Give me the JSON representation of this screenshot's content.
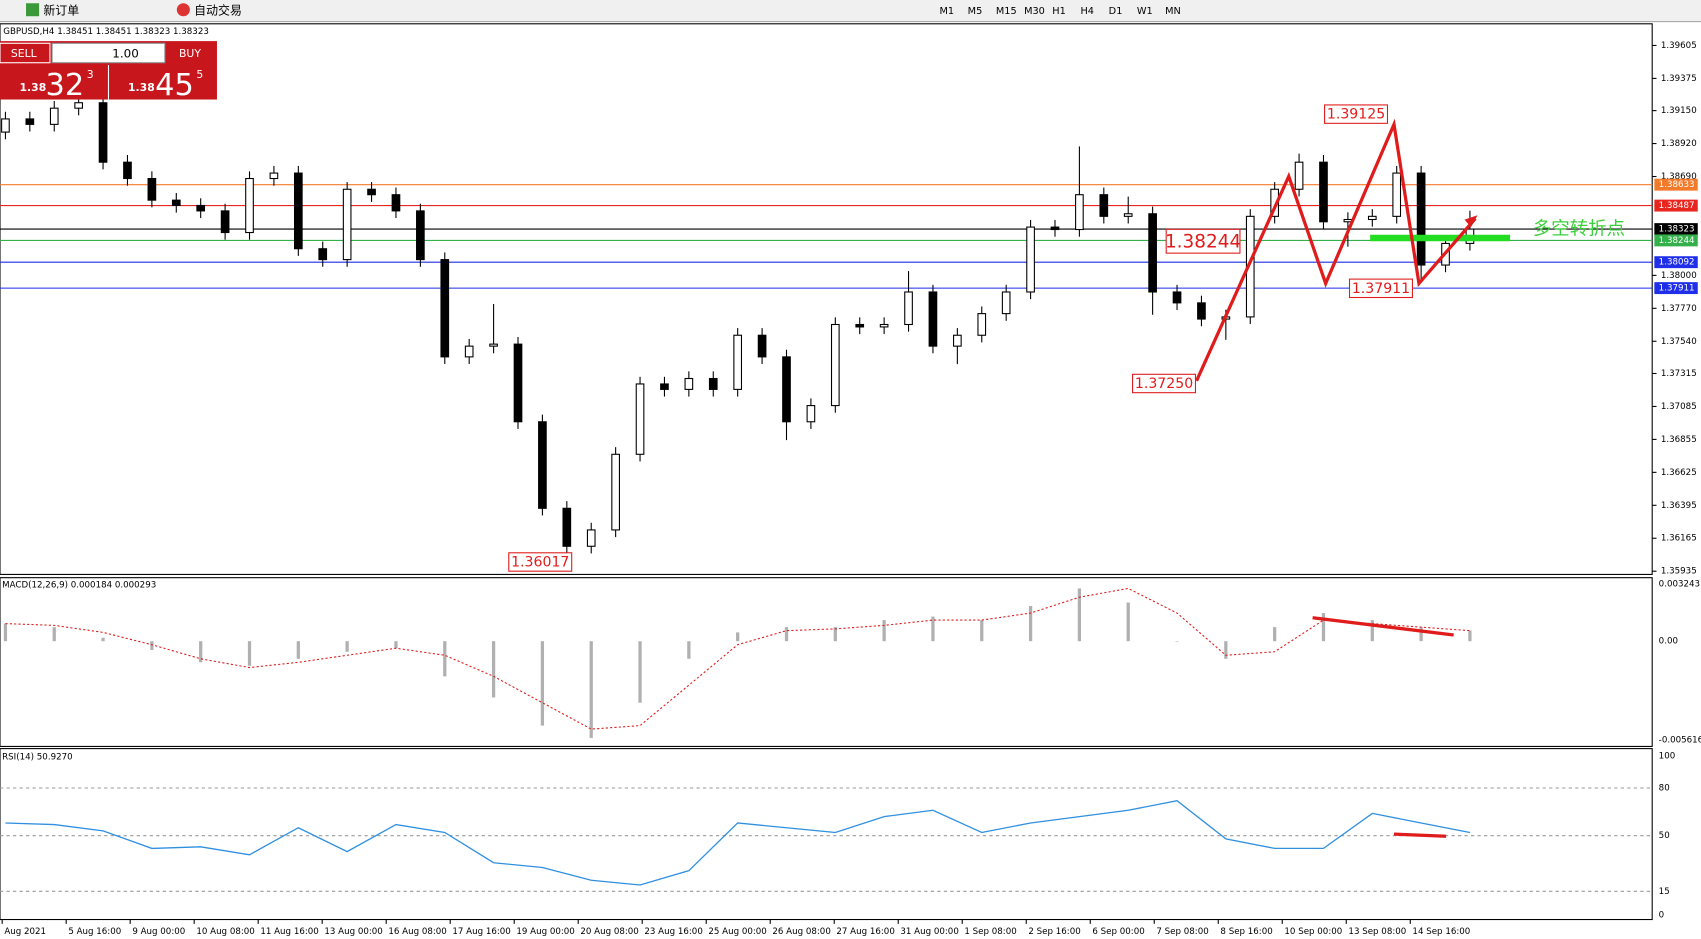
{
  "toolbar": {
    "new_order": "新订单",
    "auto_trade": "自动交易",
    "timeframes": [
      "M1",
      "M5",
      "M15",
      "M30",
      "H1",
      "H4",
      "D1",
      "W1",
      "MN"
    ]
  },
  "trade_panel": {
    "sell": "SELL",
    "buy": "BUY",
    "lot": "1.00",
    "bid_prefix": "1.38",
    "bid_big": "32",
    "bid_sup": "3",
    "ask_prefix": "1.38",
    "ask_big": "45",
    "ask_sup": "5"
  },
  "chart": {
    "symbol_info": "GBPUSD,H4  1.38451 1.38451 1.38323 1.38323",
    "price_ticks": [
      "1.39605",
      "1.39375",
      "1.39150",
      "1.38920",
      "1.38690",
      "1.38000",
      "1.37770",
      "1.37540",
      "1.37315",
      "1.37085",
      "1.36855",
      "1.36625",
      "1.36395",
      "1.36165",
      "1.35935"
    ],
    "price_lines": [
      {
        "value": "1.38633",
        "color": "#f47a2b"
      },
      {
        "value": "1.38487",
        "color": "#e8261f"
      },
      {
        "value": "1.38323",
        "color": "#000000"
      },
      {
        "value": "1.38244",
        "color": "#33b04a"
      },
      {
        "value": "1.38092",
        "color": "#1f2ee8"
      },
      {
        "value": "1.37911",
        "color": "#1f2ee8"
      }
    ],
    "time_labels": [
      "Aug 2021",
      "5 Aug 16:00",
      "9 Aug 00:00",
      "10 Aug 08:00",
      "11 Aug 16:00",
      "13 Aug 00:00",
      "16 Aug 08:00",
      "17 Aug 16:00",
      "19 Aug 00:00",
      "20 Aug 08:00",
      "23 Aug 16:00",
      "25 Aug 00:00",
      "26 Aug 08:00",
      "27 Aug 16:00",
      "31 Aug 00:00",
      "1 Sep 08:00",
      "2 Sep 16:00",
      "6 Sep 00:00",
      "7 Sep 08:00",
      "8 Sep 16:00",
      "10 Sep 00:00",
      "13 Sep 08:00",
      "14 Sep 16:00"
    ],
    "annotations": {
      "high": "1.39125",
      "pivot": "1.38244",
      "low_right": "1.37911",
      "low_mid": "1.37250",
      "low_left": "1.36017",
      "turn_point": "多空转折点"
    },
    "candles": [
      [
        1.39,
        1.39142,
        1.3895,
        1.39092
      ],
      [
        1.39092,
        1.39142,
        1.39004,
        1.39054
      ],
      [
        1.39054,
        1.39217,
        1.39004,
        1.39167
      ],
      [
        1.39167,
        1.39255,
        1.39117,
        1.39205
      ],
      [
        1.39205,
        1.39255,
        1.3874,
        1.3879
      ],
      [
        1.3879,
        1.3884,
        1.38626,
        1.38676
      ],
      [
        1.38676,
        1.38726,
        1.38475,
        1.38525
      ],
      [
        1.38525,
        1.38575,
        1.38438,
        1.38488
      ],
      [
        1.38488,
        1.38538,
        1.384,
        1.3845
      ],
      [
        1.3845,
        1.385,
        1.38249,
        1.38299
      ],
      [
        1.38299,
        1.38726,
        1.38249,
        1.38676
      ],
      [
        1.38676,
        1.38764,
        1.38626,
        1.38714
      ],
      [
        1.38714,
        1.38764,
        1.38136,
        1.38186
      ],
      [
        1.38186,
        1.38236,
        1.3806,
        1.3811
      ],
      [
        1.3811,
        1.38651,
        1.3806,
        1.38601
      ],
      [
        1.38601,
        1.38651,
        1.38513,
        1.38563
      ],
      [
        1.38563,
        1.38613,
        1.384,
        1.3845
      ],
      [
        1.3845,
        1.385,
        1.3806,
        1.3811
      ],
      [
        1.3811,
        1.3816,
        1.37381,
        1.37431
      ],
      [
        1.37431,
        1.37556,
        1.37381,
        1.37506
      ],
      [
        1.37506,
        1.378,
        1.37456,
        1.3752
      ],
      [
        1.3752,
        1.3757,
        1.36928,
        1.36978
      ],
      [
        1.36978,
        1.37028,
        1.36324,
        1.36374
      ],
      [
        1.36374,
        1.36424,
        1.36017,
        1.36109
      ],
      [
        1.36109,
        1.36273,
        1.36059,
        1.36223
      ],
      [
        1.36223,
        1.36801,
        1.36173,
        1.36751
      ],
      [
        1.36751,
        1.37292,
        1.36701,
        1.37242
      ],
      [
        1.37242,
        1.37292,
        1.37154,
        1.37204
      ],
      [
        1.37204,
        1.3733,
        1.37154,
        1.3728
      ],
      [
        1.3728,
        1.3733,
        1.37154,
        1.37204
      ],
      [
        1.37204,
        1.37632,
        1.37154,
        1.37582
      ],
      [
        1.37582,
        1.37632,
        1.37381,
        1.37431
      ],
      [
        1.37431,
        1.37481,
        1.3685,
        1.36978
      ],
      [
        1.36978,
        1.37141,
        1.36928,
        1.37091
      ],
      [
        1.37091,
        1.37707,
        1.37041,
        1.37657
      ],
      [
        1.37657,
        1.37707,
        1.3759,
        1.3764
      ],
      [
        1.3764,
        1.37707,
        1.3759,
        1.37657
      ],
      [
        1.37657,
        1.3803,
        1.37607,
        1.37884
      ],
      [
        1.37884,
        1.37934,
        1.37456,
        1.37506
      ],
      [
        1.37506,
        1.37632,
        1.3738,
        1.37582
      ],
      [
        1.37582,
        1.37783,
        1.37532,
        1.37733
      ],
      [
        1.37733,
        1.37934,
        1.37683,
        1.37884
      ],
      [
        1.37884,
        1.38387,
        1.37834,
        1.38337
      ],
      [
        1.38337,
        1.38387,
        1.3827,
        1.3832
      ],
      [
        1.3832,
        1.389,
        1.3827,
        1.38563
      ],
      [
        1.38563,
        1.38613,
        1.38362,
        1.38412
      ],
      [
        1.38412,
        1.3855,
        1.38362,
        1.3843
      ],
      [
        1.3843,
        1.3848,
        1.37725,
        1.37884
      ],
      [
        1.37884,
        1.37934,
        1.37758,
        1.37808
      ],
      [
        1.37808,
        1.37858,
        1.37645,
        1.37695
      ],
      [
        1.37695,
        1.3776,
        1.3755,
        1.3771
      ],
      [
        1.3771,
        1.38462,
        1.3766,
        1.38412
      ],
      [
        1.38412,
        1.38651,
        1.38362,
        1.38601
      ],
      [
        1.38601,
        1.3885,
        1.38551,
        1.3879
      ],
      [
        1.3879,
        1.3884,
        1.38324,
        1.38374
      ],
      [
        1.38374,
        1.3844,
        1.382,
        1.3839
      ],
      [
        1.3839,
        1.38462,
        1.3834,
        1.38412
      ],
      [
        1.38412,
        1.38764,
        1.38362,
        1.38714
      ],
      [
        1.38714,
        1.38764,
        1.3795,
        1.38072
      ],
      [
        1.38072,
        1.38273,
        1.38022,
        1.38223
      ],
      [
        1.38223,
        1.38451,
        1.38173,
        1.38323
      ]
    ],
    "macd": {
      "label": "MACD(12,26,9) 0.000184 0.000293",
      "axis": [
        "0.003243",
        "0.00",
        "-0.005616"
      ],
      "hist": [
        0.001,
        0.0008,
        0.0002,
        -0.0005,
        -0.0012,
        -0.0014,
        -0.001,
        -0.0006,
        -0.0004,
        -0.002,
        -0.0032,
        -0.0048,
        -0.0055,
        -0.0035,
        -0.001,
        0.0005,
        0.0008,
        0.0008,
        0.0012,
        0.0014,
        0.0012,
        0.002,
        0.003,
        0.0022,
        0.0,
        -0.001,
        0.0008,
        0.0016,
        0.0012,
        0.0008,
        0.0006
      ],
      "signal": [
        0.001,
        0.0009,
        0.0005,
        -0.0002,
        -0.001,
        -0.0015,
        -0.0012,
        -0.0008,
        -0.0004,
        -0.0008,
        -0.002,
        -0.0035,
        -0.005,
        -0.0048,
        -0.0025,
        -0.0002,
        0.0006,
        0.0007,
        0.0009,
        0.0012,
        0.0012,
        0.0016,
        0.0025,
        0.003,
        0.0016,
        -0.0008,
        -0.0006,
        0.0012,
        0.001,
        0.0008,
        0.0006
      ]
    },
    "rsi": {
      "label": "RSI(14) 50.9270",
      "levels": [
        "100",
        "80",
        "50",
        "15",
        "0"
      ],
      "values": [
        58,
        57,
        53,
        42,
        43,
        38,
        55,
        40,
        57,
        52,
        33,
        30,
        22,
        19,
        28,
        58,
        55,
        52,
        62,
        66,
        52,
        58,
        62,
        66,
        72,
        48,
        42,
        42,
        64,
        58,
        52
      ]
    }
  }
}
